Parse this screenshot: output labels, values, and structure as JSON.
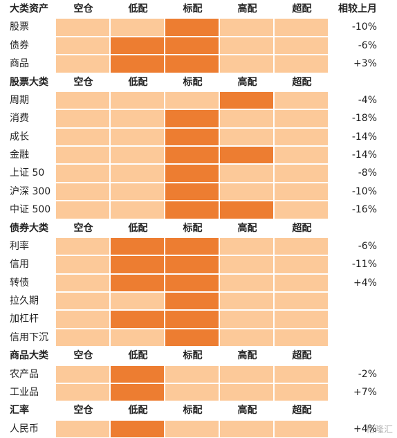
{
  "columns": [
    "空仓",
    "低配",
    "标配",
    "高配",
    "超配"
  ],
  "change_header": "相较上月",
  "colors": {
    "light": "#fcc999",
    "dark": "#ed7d31"
  },
  "watermark": "格隆汇",
  "sections": [
    {
      "title": "大类资产",
      "rows": [
        {
          "label": "股票",
          "dark": [
            2
          ],
          "change": "-10%"
        },
        {
          "label": "债券",
          "dark": [
            1,
            2
          ],
          "change": "-6%"
        },
        {
          "label": "商品",
          "dark": [
            1,
            2
          ],
          "change": "+3%"
        }
      ]
    },
    {
      "title": "股票大类",
      "rows": [
        {
          "label": "周期",
          "dark": [
            3
          ],
          "change": "-4%"
        },
        {
          "label": "消费",
          "dark": [
            2
          ],
          "change": "-18%"
        },
        {
          "label": "成长",
          "dark": [
            2
          ],
          "change": "-14%"
        },
        {
          "label": "金融",
          "dark": [
            2,
            3
          ],
          "change": "-14%"
        },
        {
          "label": "上证 50",
          "dark": [
            2
          ],
          "change": "-8%"
        },
        {
          "label": "沪深 300",
          "dark": [
            2
          ],
          "change": "-10%"
        },
        {
          "label": "中证 500",
          "dark": [
            2,
            3
          ],
          "change": "-16%"
        }
      ]
    },
    {
      "title": "债券大类",
      "rows": [
        {
          "label": "利率",
          "dark": [
            1,
            2
          ],
          "change": "-6%"
        },
        {
          "label": "信用",
          "dark": [
            1,
            2
          ],
          "change": "-11%"
        },
        {
          "label": "转债",
          "dark": [
            1,
            2
          ],
          "change": "+4%"
        },
        {
          "label": "拉久期",
          "dark": [
            2
          ],
          "change": null
        },
        {
          "label": "加杠杆",
          "dark": [
            1,
            2
          ],
          "change": null
        },
        {
          "label": "信用下沉",
          "dark": [
            2
          ],
          "change": null
        }
      ]
    },
    {
      "title": "商品大类",
      "rows": [
        {
          "label": "农产品",
          "dark": [
            1
          ],
          "change": "-2%"
        },
        {
          "label": "工业品",
          "dark": [
            1
          ],
          "change": "+7%"
        }
      ]
    },
    {
      "title": "汇率",
      "rows": [
        {
          "label": "人民币",
          "dark": [
            1
          ],
          "change": "+4%"
        }
      ]
    }
  ]
}
